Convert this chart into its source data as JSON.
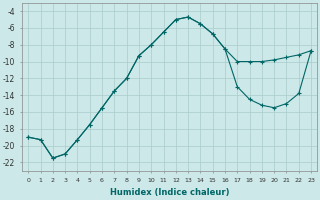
{
  "xlabel": "Humidex (Indice chaleur)",
  "bg_color": "#cce8e8",
  "line_color": "#006666",
  "grid_color": "#aacccc",
  "xlim": [
    -0.5,
    23.5
  ],
  "ylim": [
    -23,
    -3
  ],
  "yticks": [
    -22,
    -20,
    -18,
    -16,
    -14,
    -12,
    -10,
    -8,
    -6,
    -4
  ],
  "xticks": [
    0,
    1,
    2,
    3,
    4,
    5,
    6,
    7,
    8,
    9,
    10,
    11,
    12,
    13,
    14,
    15,
    16,
    17,
    18,
    19,
    20,
    21,
    22,
    23
  ],
  "curve1_x": [
    0,
    1,
    2,
    3,
    4,
    5,
    6,
    7,
    8,
    9,
    10,
    11,
    12,
    13,
    14,
    15,
    16,
    17,
    18,
    19,
    20,
    21,
    22,
    23
  ],
  "curve1_y": [
    -19.0,
    -19.3,
    -21.5,
    -21.0,
    -19.3,
    -17.5,
    -15.5,
    -13.5,
    -12.0,
    -9.3,
    -8.0,
    -6.5,
    -5.0,
    -4.7,
    -5.5,
    -6.7,
    -8.5,
    -10.0,
    -10.0,
    -10.0,
    -9.8,
    -9.5,
    -9.2,
    -8.7
  ],
  "curve2_x": [
    0,
    1,
    2,
    3,
    4,
    5,
    6,
    7,
    8,
    9,
    10,
    11,
    12,
    13,
    14,
    15,
    16,
    17,
    18,
    19,
    20,
    21,
    22,
    23
  ],
  "curve2_y": [
    -19.0,
    -19.3,
    -21.5,
    -21.0,
    -19.3,
    -17.5,
    -15.5,
    -13.5,
    -12.0,
    -9.3,
    -8.0,
    -6.5,
    -5.0,
    -4.7,
    -5.5,
    -6.7,
    -8.5,
    -13.0,
    -14.5,
    -15.2,
    -15.5,
    -15.0,
    -13.8,
    -8.7
  ]
}
